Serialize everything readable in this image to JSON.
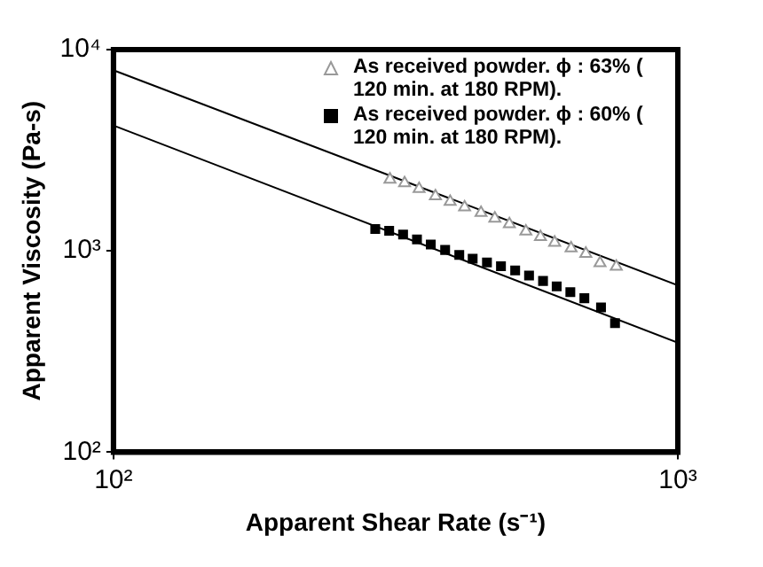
{
  "chart_data": {
    "type": "scatter",
    "xlabel": "Apparent Shear Rate (s⁻¹)",
    "ylabel": "Apparent Viscosity (Pa-s)",
    "log": "xy",
    "grid": false,
    "legend": "top right",
    "xlim": [
      100,
      1000
    ],
    "xticks": [
      {
        "value": 100,
        "label": "10²"
      },
      {
        "value": 1000,
        "label": "10³"
      }
    ],
    "ylim": [
      100,
      10000
    ],
    "yticks": [
      {
        "value": 100,
        "label": "10²"
      },
      {
        "value": 1000,
        "label": "10³"
      },
      {
        "value": 10000,
        "label": "10⁴"
      }
    ],
    "series": [
      {
        "name": "As received powder.  ϕ : 63% ( 120 min. at 180 RPM).",
        "color": "#999999",
        "marker": "triangle",
        "x": [
          309,
          328,
          348,
          372,
          395,
          419,
          448,
          474,
          503,
          538,
          571,
          605,
          647,
          687,
          728,
          778
        ],
        "values": [
          2265,
          2170,
          2035,
          1870,
          1755,
          1647,
          1547,
          1450,
          1360,
          1250,
          1173,
          1100,
          1032,
          969,
          871,
          835
        ]
      },
      {
        "name": "As received powder.  ϕ : 60% ( 120 min. at 180 RPM).",
        "color": "#000000",
        "marker": "square",
        "x": [
          291,
          308,
          326,
          345,
          365,
          387,
          410,
          433,
          459,
          486,
          515,
          545,
          577,
          610,
          645,
          683,
          731,
          774
        ],
        "values": [
          1285,
          1259,
          1205,
          1140,
          1076,
          1011,
          955,
          914,
          877,
          840,
          800,
          755,
          709,
          666,
          624,
          582,
          524,
          438
        ]
      },
      {
        "type": "line",
        "color": "#000000",
        "marker": "none",
        "x": [
          100,
          1000
        ],
        "values": [
          7900,
          675
        ]
      },
      {
        "type": "line",
        "color": "#000000",
        "marker": "none",
        "x": [
          100,
          1000
        ],
        "values": [
          4200,
          350
        ]
      }
    ]
  }
}
